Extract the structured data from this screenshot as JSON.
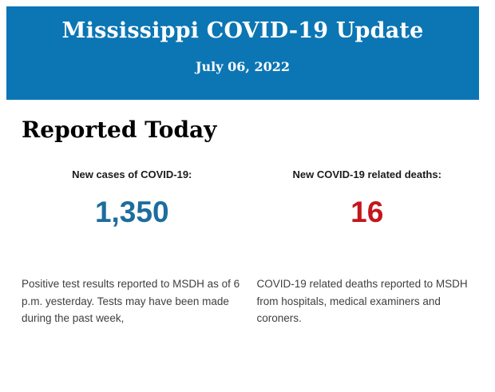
{
  "banner": {
    "title": "Mississippi COVID-19 Update",
    "date": "July 06, 2022",
    "background_color": "#0c76b4",
    "text_color": "#ffffff"
  },
  "main": {
    "heading": "Reported Today",
    "stats": [
      {
        "label": "New cases of COVID-19:",
        "value": "1,350",
        "value_color": "#1d6d9e",
        "description": "Positive test results reported to MSDH as of 6 p.m. yesterday. Tests may have been made during the past week,"
      },
      {
        "label": "New COVID-19 related deaths:",
        "value": "16",
        "value_color": "#c4161c",
        "description": "COVID-19 related deaths reported to MSDH from hospitals, medical examiners and coroners."
      }
    ]
  }
}
